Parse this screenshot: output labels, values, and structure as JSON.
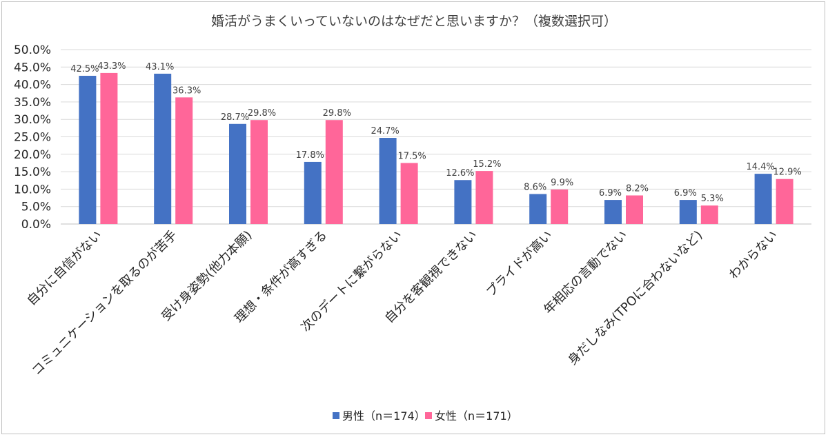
{
  "chart_data": {
    "type": "bar",
    "title": "婚活がうまくいっていないのはなぜだと思いますか？（複数選択可）",
    "categories": [
      "自分に自信がない",
      "コミュニケーションを取るのが苦手",
      "受け身姿勢(他力本願)",
      "理想・条件が高すぎる",
      "次のデートに繋がらない",
      "自分を客観視できない",
      "プライドが高い",
      "年相応の言動でない",
      "身だしなみ(TPOに合わないなど)",
      "わからない"
    ],
    "series": [
      {
        "name": "男性（n＝174）",
        "color": "#4472c4",
        "values": [
          42.5,
          43.1,
          28.7,
          17.8,
          24.7,
          12.6,
          8.6,
          6.9,
          6.9,
          14.4
        ],
        "labels": [
          "42.5%",
          "43.1%",
          "28.7%",
          "17.8%",
          "24.7%",
          "12.6%",
          "8.6%",
          "6.9%",
          "6.9%",
          "14.4%"
        ]
      },
      {
        "name": "女性（n＝171）",
        "color": "#ff6699",
        "values": [
          43.3,
          36.3,
          29.8,
          29.8,
          17.5,
          15.2,
          9.9,
          8.2,
          5.3,
          12.9
        ],
        "labels": [
          "43.3%",
          "36.3%",
          "29.8%",
          "29.8%",
          "17.5%",
          "15.2%",
          "9.9%",
          "8.2%",
          "5.3%",
          "12.9%"
        ]
      }
    ],
    "ylim": [
      0,
      50
    ],
    "yticks": [
      "0.0%",
      "5.0%",
      "10.0%",
      "15.0%",
      "20.0%",
      "25.0%",
      "30.0%",
      "35.0%",
      "40.0%",
      "45.0%",
      "50.0%"
    ],
    "xlabel": "",
    "ylabel": "",
    "grid": true,
    "legend_position": "bottom"
  }
}
